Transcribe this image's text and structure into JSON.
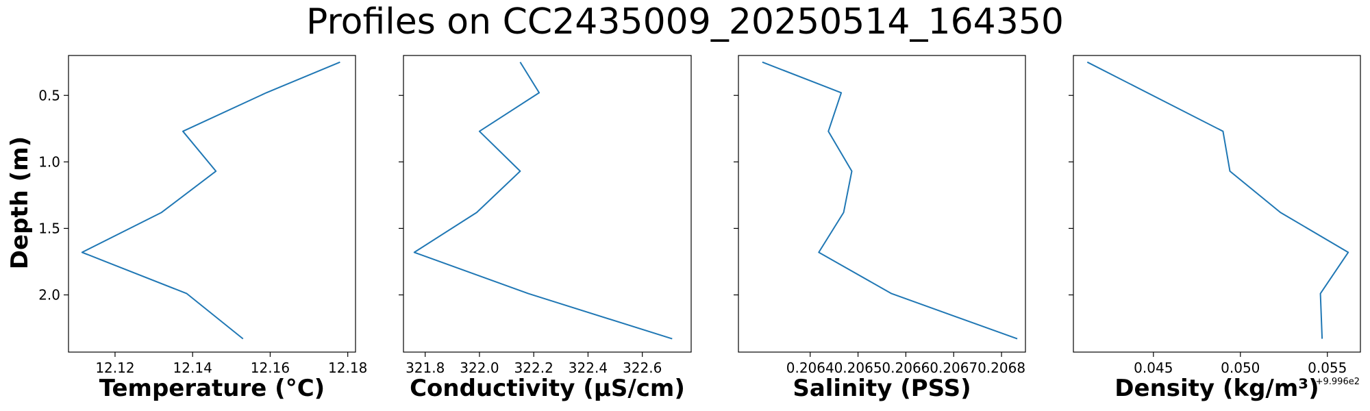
{
  "title": "Profiles on CC2435009_20250514_164350",
  "ylabel": "Depth (m)",
  "colors": {
    "line": "#1f77b4",
    "frame": "#000000"
  },
  "chart_data": [
    {
      "type": "line",
      "xlabel": "Temperature (°C)",
      "xlim": [
        12.108,
        12.182
      ],
      "ylim": [
        2.43,
        0.2
      ],
      "x_ticks": [
        12.12,
        12.14,
        12.16,
        12.18
      ],
      "x_tick_labels": [
        "12.12",
        "12.14",
        "12.16",
        "12.18"
      ],
      "y_ticks": [
        0.5,
        1.0,
        1.5,
        2.0
      ],
      "y_tick_labels": [
        "0.5",
        "1.0",
        "1.5",
        "2.0"
      ],
      "series": [
        {
          "x": [
            12.178,
            12.159,
            12.1375,
            12.146,
            12.132,
            12.1115,
            12.1385,
            12.153
          ],
          "y": [
            0.25,
            0.48,
            0.77,
            1.07,
            1.38,
            1.68,
            1.99,
            2.33
          ]
        }
      ]
    },
    {
      "type": "line",
      "xlabel": "Conductivity (µS/cm)",
      "xlim": [
        321.72,
        322.78
      ],
      "ylim": [
        2.43,
        0.2
      ],
      "x_ticks": [
        321.8,
        322.0,
        322.2,
        322.4,
        322.6
      ],
      "x_tick_labels": [
        "321.8",
        "322.0",
        "322.2",
        "322.4",
        "322.6"
      ],
      "series": [
        {
          "x": [
            322.15,
            322.22,
            322.0,
            322.15,
            321.99,
            321.76,
            322.18,
            322.71
          ],
          "y": [
            0.25,
            0.48,
            0.77,
            1.07,
            1.38,
            1.68,
            1.99,
            2.33
          ]
        }
      ]
    },
    {
      "type": "line",
      "xlabel": "Salinity (PSS)",
      "xlim": [
        0.20625,
        0.20685
      ],
      "ylim": [
        2.43,
        0.2
      ],
      "x_ticks": [
        0.2064,
        0.2065,
        0.2066,
        0.2067,
        0.2068
      ],
      "x_tick_labels": [
        "0.2064",
        "0.2065",
        "0.2066",
        "0.2067",
        "0.2068"
      ],
      "series": [
        {
          "x": [
            0.2063,
            0.206465,
            0.206438,
            0.206487,
            0.20647,
            0.206418,
            0.20657,
            0.206833
          ],
          "y": [
            0.25,
            0.48,
            0.77,
            1.07,
            1.38,
            1.68,
            1.99,
            2.33
          ]
        }
      ]
    },
    {
      "type": "line",
      "xlabel": "Density (kg/m³)",
      "offset_label": "+9.996e2",
      "xlim": [
        0.0404,
        0.0569
      ],
      "ylim": [
        2.43,
        0.2
      ],
      "x_ticks": [
        0.045,
        0.05,
        0.055
      ],
      "x_tick_labels": [
        "0.045",
        "0.050",
        "0.055"
      ],
      "series": [
        {
          "x": [
            0.0412,
            0.049,
            0.0494,
            0.0523,
            0.0562,
            0.0546,
            0.0547
          ],
          "y": [
            0.25,
            0.77,
            1.07,
            1.38,
            1.68,
            1.99,
            2.33
          ]
        }
      ]
    }
  ]
}
